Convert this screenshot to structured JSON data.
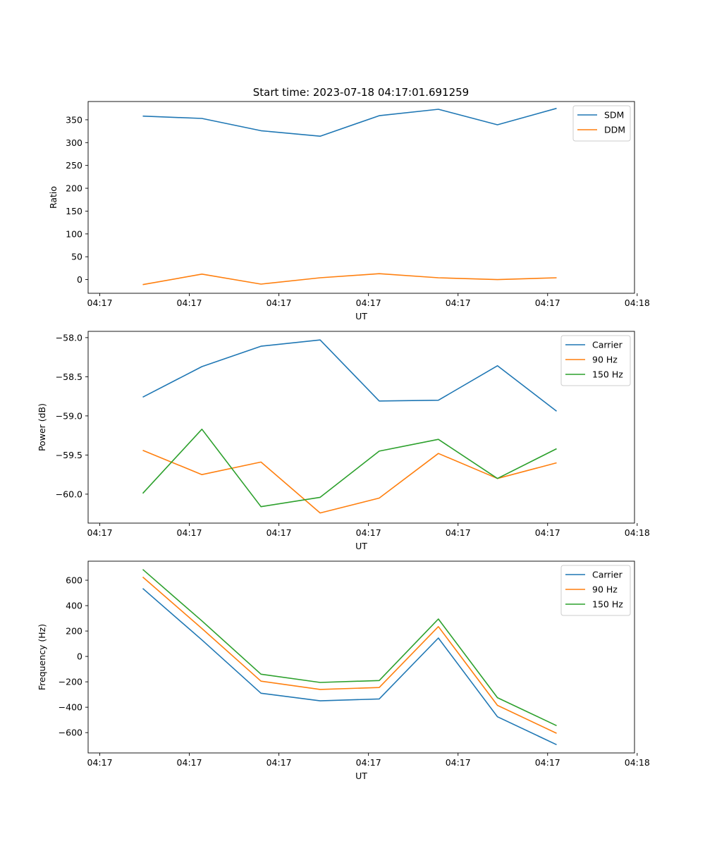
{
  "figure_title": "Start time: 2023-07-18 04:17:01.691259",
  "colors": {
    "blue": "#1f77b4",
    "orange": "#ff7f0e",
    "green": "#2ca02c"
  },
  "chart_data": [
    {
      "type": "line",
      "xlabel": "UT",
      "ylabel": "Ratio",
      "x": [
        0.61,
        1.27,
        1.93,
        2.59,
        3.25,
        3.91,
        4.57,
        5.23
      ],
      "xlim": [
        0,
        6.1
      ],
      "x_ticks": [
        0.13,
        1.13,
        2.13,
        3.13,
        4.13,
        5.13,
        6.13
      ],
      "x_tick_labels": [
        "04:17",
        "04:17",
        "04:17",
        "04:17",
        "04:17",
        "04:17",
        "04:18"
      ],
      "ylim": [
        -30,
        390
      ],
      "y_ticks": [
        0,
        50,
        100,
        150,
        200,
        250,
        300,
        350
      ],
      "y_tick_labels": [
        "0",
        "50",
        "100",
        "150",
        "200",
        "250",
        "300",
        "350"
      ],
      "legend": "top-right",
      "series": [
        {
          "name": "SDM",
          "color": "#1f77b4",
          "values": [
            358,
            353,
            326,
            314,
            359,
            373,
            339,
            375
          ]
        },
        {
          "name": "DDM",
          "color": "#ff7f0e",
          "values": [
            -11,
            12,
            -10,
            4,
            13,
            4,
            0,
            4
          ]
        }
      ]
    },
    {
      "type": "line",
      "xlabel": "UT",
      "ylabel": "Power (dB)",
      "x": [
        0.61,
        1.27,
        1.93,
        2.59,
        3.25,
        3.91,
        4.57,
        5.23
      ],
      "xlim": [
        0,
        6.1
      ],
      "x_ticks": [
        0.13,
        1.13,
        2.13,
        3.13,
        4.13,
        5.13,
        6.13
      ],
      "x_tick_labels": [
        "04:17",
        "04:17",
        "04:17",
        "04:17",
        "04:17",
        "04:17",
        "04:18"
      ],
      "ylim": [
        -60.37,
        -57.92
      ],
      "y_ticks": [
        -58.0,
        -58.5,
        -59.0,
        -59.5,
        -60.0
      ],
      "y_tick_labels": [
        "−58.0",
        "−58.5",
        "−59.0",
        "−59.5",
        "−60.0"
      ],
      "legend": "top-right",
      "series": [
        {
          "name": "Carrier",
          "color": "#1f77b4",
          "values": [
            -58.76,
            -58.37,
            -58.11,
            -58.03,
            -58.81,
            -58.8,
            -58.36,
            -58.94
          ]
        },
        {
          "name": "90 Hz",
          "color": "#ff7f0e",
          "values": [
            -59.44,
            -59.75,
            -59.59,
            -60.24,
            -60.05,
            -59.48,
            -59.8,
            -59.6
          ]
        },
        {
          "name": "150 Hz",
          "color": "#2ca02c",
          "values": [
            -59.99,
            -59.17,
            -60.16,
            -60.04,
            -59.45,
            -59.3,
            -59.8,
            -59.42
          ]
        }
      ]
    },
    {
      "type": "line",
      "xlabel": "UT",
      "ylabel": "Frequency (Hz)",
      "x": [
        0.61,
        1.27,
        1.93,
        2.59,
        3.25,
        3.91,
        4.57,
        5.23
      ],
      "xlim": [
        0,
        6.1
      ],
      "x_ticks": [
        0.13,
        1.13,
        2.13,
        3.13,
        4.13,
        5.13,
        6.13
      ],
      "x_tick_labels": [
        "04:17",
        "04:17",
        "04:17",
        "04:17",
        "04:17",
        "04:17",
        "04:18"
      ],
      "ylim": [
        -760,
        750
      ],
      "y_ticks": [
        600,
        400,
        200,
        0,
        -200,
        -400,
        -600
      ],
      "y_tick_labels": [
        "600",
        "400",
        "200",
        "0",
        "−200",
        "−400",
        "−600"
      ],
      "legend": "top-right",
      "series": [
        {
          "name": "Carrier",
          "color": "#1f77b4",
          "values": [
            535,
            130,
            -290,
            -350,
            -335,
            145,
            -475,
            -695
          ]
        },
        {
          "name": "90 Hz",
          "color": "#ff7f0e",
          "values": [
            625,
            220,
            -195,
            -260,
            -245,
            235,
            -385,
            -605
          ]
        },
        {
          "name": "150 Hz",
          "color": "#2ca02c",
          "values": [
            685,
            280,
            -140,
            -205,
            -190,
            295,
            -325,
            -545
          ]
        }
      ]
    }
  ]
}
